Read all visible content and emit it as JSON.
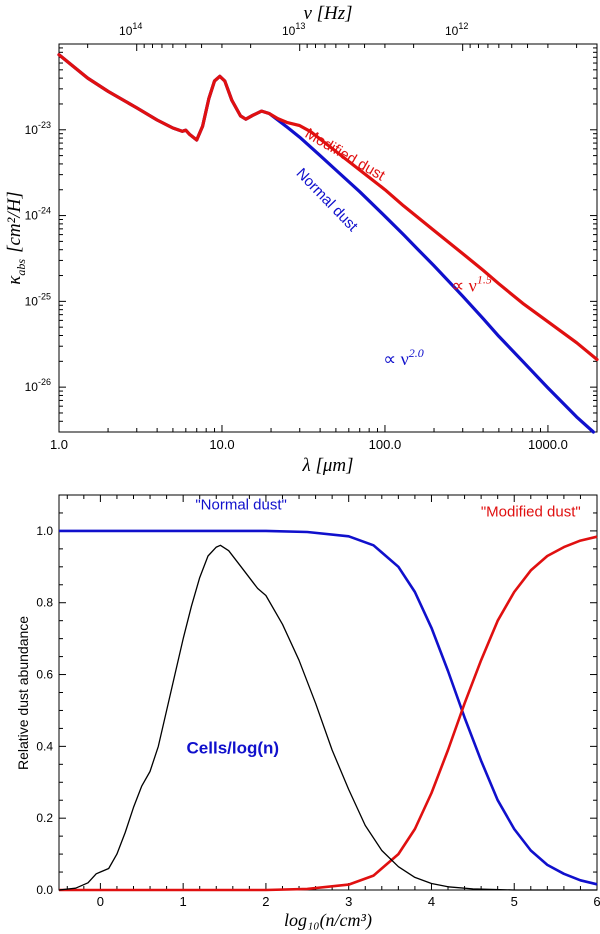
{
  "chart_data": [
    {
      "type": "line",
      "xscale": "log",
      "yscale": "log",
      "xlim": [
        1.0,
        2000
      ],
      "ylim": [
        3e-27,
        1e-22
      ],
      "xlabel": "λ  [μm]",
      "ylabel_main": "κ",
      "ylabel_sub": "abs",
      "ylabel_unit": "[cm²/H]",
      "top_axis_label": "ν [Hz]",
      "x_ticks": [
        1.0,
        10.0,
        100.0,
        1000.0
      ],
      "x_tick_labels": [
        "1.0",
        "10.0",
        "100.0",
        "1000.0"
      ],
      "y_ticks": [
        1e-26,
        1e-25,
        1e-24,
        1e-23
      ],
      "y_tick_base": [
        "10",
        "10",
        "10",
        "10"
      ],
      "y_tick_exp": [
        "-26",
        "-25",
        "-24",
        "-23"
      ],
      "top_ticks_um": [
        2.998,
        29.98,
        299.8
      ],
      "top_tick_base": [
        "10",
        "10",
        "10"
      ],
      "top_tick_exp": [
        "14",
        "13",
        "12"
      ],
      "series": [
        {
          "name": "Normal dust",
          "color": "#1010cc",
          "points": [
            [
              1.0,
              7.5e-23
            ],
            [
              1.5,
              4e-23
            ],
            [
              2.0,
              2.8e-23
            ],
            [
              3.0,
              1.8e-23
            ],
            [
              4.0,
              1.3e-23
            ],
            [
              5.0,
              1.05e-23
            ],
            [
              5.7,
              9.6e-24
            ],
            [
              6.0,
              9.9e-24
            ],
            [
              6.3,
              8.9e-24
            ],
            [
              7.0,
              7.6e-24
            ],
            [
              7.6,
              1.1e-23
            ],
            [
              8.3,
              2.3e-23
            ],
            [
              9.0,
              3.7e-23
            ],
            [
              9.7,
              4.2e-23
            ],
            [
              10.4,
              3.7e-23
            ],
            [
              11.5,
              2.2e-23
            ],
            [
              13.0,
              1.45e-23
            ],
            [
              14.0,
              1.33e-23
            ],
            [
              15.5,
              1.48e-23
            ],
            [
              17.5,
              1.65e-23
            ],
            [
              19.5,
              1.55e-23
            ],
            [
              22,
              1.3e-23
            ],
            [
              25,
              1.08e-23
            ],
            [
              30,
              8.2e-24
            ],
            [
              40,
              5e-24
            ],
            [
              50,
              3.4e-24
            ],
            [
              70,
              1.9e-24
            ],
            [
              100,
              9.8e-25
            ],
            [
              130,
              6e-25
            ],
            [
              160,
              4e-25
            ],
            [
              200,
              2.6e-25
            ],
            [
              300,
              1.15e-25
            ],
            [
              400,
              6.3e-26
            ],
            [
              500,
              3.9e-26
            ],
            [
              700,
              2e-26
            ],
            [
              1000,
              9.8e-27
            ],
            [
              1500,
              4.5e-27
            ],
            [
              1900,
              3e-27
            ]
          ]
        },
        {
          "name": "Modified dust",
          "color": "#e01010",
          "points": [
            [
              1.0,
              7.5e-23
            ],
            [
              1.5,
              4e-23
            ],
            [
              2.0,
              2.8e-23
            ],
            [
              3.0,
              1.8e-23
            ],
            [
              4.0,
              1.3e-23
            ],
            [
              5.0,
              1.05e-23
            ],
            [
              5.7,
              9.6e-24
            ],
            [
              6.0,
              9.9e-24
            ],
            [
              6.3,
              8.9e-24
            ],
            [
              7.0,
              7.6e-24
            ],
            [
              7.6,
              1.1e-23
            ],
            [
              8.3,
              2.3e-23
            ],
            [
              9.0,
              3.7e-23
            ],
            [
              9.7,
              4.2e-23
            ],
            [
              10.4,
              3.7e-23
            ],
            [
              11.5,
              2.2e-23
            ],
            [
              13.0,
              1.45e-23
            ],
            [
              14.0,
              1.33e-23
            ],
            [
              15.5,
              1.48e-23
            ],
            [
              17.5,
              1.65e-23
            ],
            [
              19.5,
              1.55e-23
            ],
            [
              22,
              1.35e-23
            ],
            [
              25,
              1.22e-23
            ],
            [
              30,
              1.12e-23
            ],
            [
              35,
              9.5e-24
            ],
            [
              40,
              7.8e-24
            ],
            [
              50,
              5.6e-24
            ],
            [
              70,
              3.4e-24
            ],
            [
              100,
              2e-24
            ],
            [
              130,
              1.3e-24
            ],
            [
              200,
              6.7e-25
            ],
            [
              300,
              3.6e-25
            ],
            [
              400,
              2.3e-25
            ],
            [
              500,
              1.6e-25
            ],
            [
              700,
              9.5e-26
            ],
            [
              1000,
              5.8e-26
            ],
            [
              1500,
              3.3e-26
            ],
            [
              2000,
              2.1e-26
            ]
          ]
        }
      ],
      "annotations": [
        {
          "id": "modified",
          "text": "Modified dust",
          "color": "#e01010",
          "x": 55,
          "y": 4.6e-24,
          "angle": 30
        },
        {
          "id": "normal",
          "text": "Normal dust",
          "color": "#1010cc",
          "x": 42,
          "y": 1.4e-24,
          "angle": 46
        },
        {
          "id": "nu15",
          "prefix": "∝ ν",
          "sup": "1.5",
          "color": "#e01010",
          "x": 340,
          "y": 1.3e-25
        },
        {
          "id": "nu20",
          "prefix": "∝ ν",
          "sup": "2.0",
          "color": "#1010cc",
          "x": 130,
          "y": 1.8e-26
        }
      ]
    },
    {
      "type": "line",
      "xlim": [
        -0.5,
        6.0
      ],
      "ylim": [
        0.0,
        1.1
      ],
      "xlabel": "log₁₀(n/cm³)",
      "ylabel": "Relative dust abundance",
      "x_ticks": [
        0,
        1,
        2,
        3,
        4,
        5,
        6
      ],
      "x_tick_labels": [
        "0",
        "1",
        "2",
        "3",
        "4",
        "5",
        "6"
      ],
      "y_ticks": [
        0.0,
        0.2,
        0.4,
        0.6,
        0.8,
        1.0
      ],
      "y_tick_labels": [
        "0.0",
        "0.2",
        "0.4",
        "0.6",
        "0.8",
        "1.0"
      ],
      "series": [
        {
          "name": "\"Normal dust\"",
          "color": "#1010cc",
          "points": [
            [
              -0.5,
              1.0
            ],
            [
              2.0,
              1.0
            ],
            [
              2.5,
              0.997
            ],
            [
              3.0,
              0.985
            ],
            [
              3.3,
              0.96
            ],
            [
              3.6,
              0.9
            ],
            [
              3.8,
              0.83
            ],
            [
              4.0,
              0.73
            ],
            [
              4.2,
              0.61
            ],
            [
              4.4,
              0.48
            ],
            [
              4.6,
              0.36
            ],
            [
              4.8,
              0.25
            ],
            [
              5.0,
              0.17
            ],
            [
              5.2,
              0.11
            ],
            [
              5.4,
              0.07
            ],
            [
              5.6,
              0.045
            ],
            [
              5.8,
              0.027
            ],
            [
              6.0,
              0.016
            ]
          ]
        },
        {
          "name": "\"Modified dust\"",
          "color": "#e01010",
          "points": [
            [
              -0.5,
              0.0
            ],
            [
              2.0,
              0.0
            ],
            [
              2.5,
              0.003
            ],
            [
              3.0,
              0.015
            ],
            [
              3.3,
              0.04
            ],
            [
              3.6,
              0.1
            ],
            [
              3.8,
              0.17
            ],
            [
              4.0,
              0.27
            ],
            [
              4.2,
              0.39
            ],
            [
              4.4,
              0.52
            ],
            [
              4.6,
              0.64
            ],
            [
              4.8,
              0.75
            ],
            [
              5.0,
              0.83
            ],
            [
              5.2,
              0.89
            ],
            [
              5.4,
              0.93
            ],
            [
              5.6,
              0.955
            ],
            [
              5.8,
              0.973
            ],
            [
              6.0,
              0.984
            ]
          ]
        },
        {
          "name": "Cells/log(n)",
          "color": "#000000",
          "points": [
            [
              -0.5,
              0.0
            ],
            [
              -0.3,
              0.005
            ],
            [
              -0.15,
              0.02
            ],
            [
              -0.05,
              0.045
            ],
            [
              0.0,
              0.05
            ],
            [
              0.1,
              0.06
            ],
            [
              0.2,
              0.1
            ],
            [
              0.3,
              0.16
            ],
            [
              0.4,
              0.23
            ],
            [
              0.5,
              0.29
            ],
            [
              0.6,
              0.33
            ],
            [
              0.7,
              0.4
            ],
            [
              0.8,
              0.5
            ],
            [
              0.9,
              0.6
            ],
            [
              1.0,
              0.7
            ],
            [
              1.1,
              0.79
            ],
            [
              1.2,
              0.87
            ],
            [
              1.3,
              0.93
            ],
            [
              1.4,
              0.955
            ],
            [
              1.45,
              0.96
            ],
            [
              1.55,
              0.945
            ],
            [
              1.7,
              0.9
            ],
            [
              1.9,
              0.84
            ],
            [
              2.0,
              0.82
            ],
            [
              2.2,
              0.74
            ],
            [
              2.4,
              0.64
            ],
            [
              2.6,
              0.52
            ],
            [
              2.8,
              0.39
            ],
            [
              3.0,
              0.28
            ],
            [
              3.2,
              0.18
            ],
            [
              3.4,
              0.11
            ],
            [
              3.6,
              0.065
            ],
            [
              3.8,
              0.035
            ],
            [
              4.0,
              0.018
            ],
            [
              4.2,
              0.009
            ],
            [
              4.5,
              0.003
            ],
            [
              5.0,
              0.0
            ],
            [
              6.0,
              0.0
            ]
          ]
        }
      ],
      "labels": [
        {
          "id": "normal",
          "text": "\"Normal dust\"",
          "color": "#1010cc",
          "x": 1.7,
          "y": 1.06
        },
        {
          "id": "modified",
          "text": "\"Modified dust\"",
          "color": "#e01010",
          "x": 5.2,
          "y": 1.04
        },
        {
          "id": "cells",
          "text": "Cells/log(n)",
          "color": "#1010cc",
          "x": 1.6,
          "y": 0.38
        }
      ]
    }
  ]
}
